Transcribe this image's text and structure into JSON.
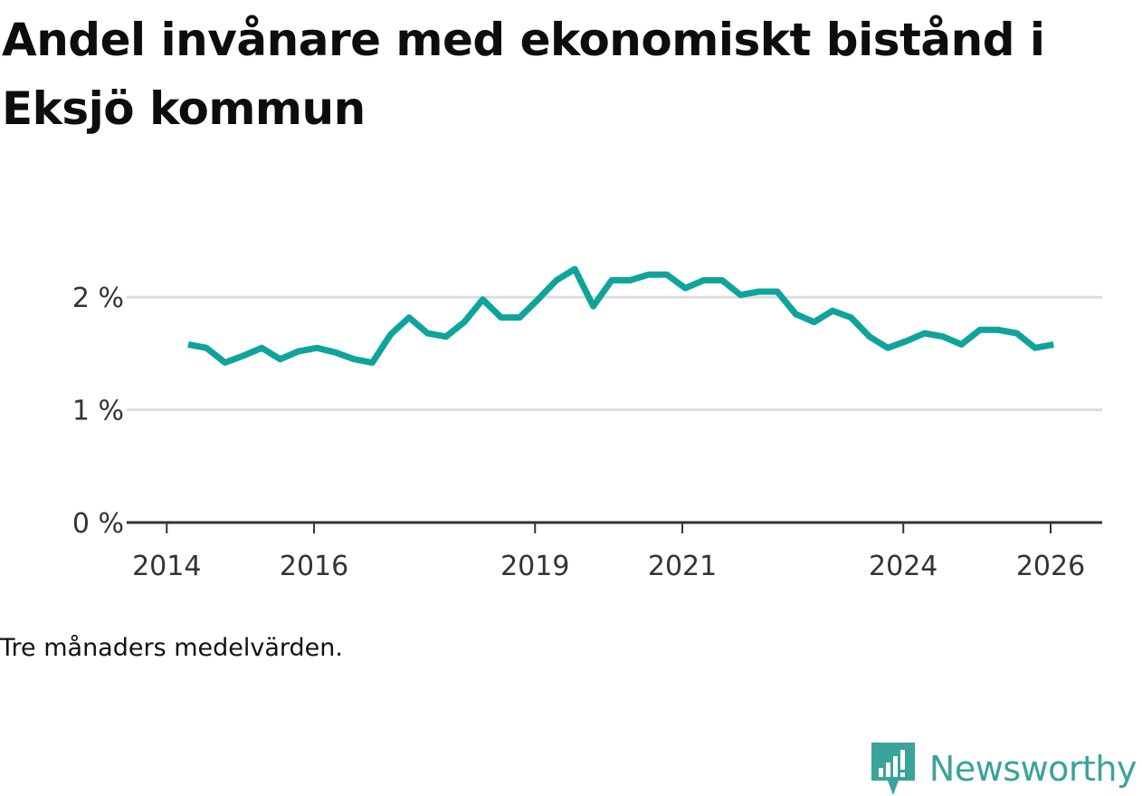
{
  "title": "Andel invånare med ekonomiskt bistånd i Eksjö kommun",
  "footnote": "Tre månaders medelvärden.",
  "brand": {
    "name": "Newsworthy",
    "icon": "newsworthy-logo-icon",
    "color": "#3aa39a"
  },
  "colors": {
    "line": "#0fa49b",
    "grid": "#dddddd",
    "axis": "#333333"
  },
  "chart_data": {
    "type": "line",
    "title": "Andel invånare med ekonomiskt bistånd i Eksjö kommun",
    "xlabel": "",
    "ylabel": "",
    "xlim": [
      2013.8,
      2026.7
    ],
    "ylim": [
      0,
      2.5
    ],
    "grid": true,
    "x_ticks": [
      {
        "value": 2014,
        "label": "2014"
      },
      {
        "value": 2016,
        "label": "2016"
      },
      {
        "value": 2019,
        "label": "2019"
      },
      {
        "value": 2021,
        "label": "2021"
      },
      {
        "value": 2024,
        "label": "2024"
      },
      {
        "value": 2026,
        "label": "2026"
      }
    ],
    "y_ticks": [
      {
        "value": 0,
        "label": "0 %"
      },
      {
        "value": 1,
        "label": "1 %"
      },
      {
        "value": 2,
        "label": "2 %"
      }
    ],
    "series": [
      {
        "name": "Andel invånare med ekonomiskt bistånd",
        "x": [
          2014.29,
          2014.54,
          2014.79,
          2015.04,
          2015.29,
          2015.54,
          2015.79,
          2016.04,
          2016.29,
          2016.54,
          2016.79,
          2017.04,
          2017.29,
          2017.54,
          2017.79,
          2018.04,
          2018.29,
          2018.54,
          2018.79,
          2019.04,
          2019.29,
          2019.54,
          2019.79,
          2020.04,
          2020.29,
          2020.54,
          2020.79,
          2021.04,
          2021.29,
          2021.54,
          2021.79,
          2022.04,
          2022.29,
          2022.54,
          2022.79,
          2023.04,
          2023.29,
          2023.54,
          2023.79,
          2024.04,
          2024.29,
          2024.54,
          2024.79,
          2025.04,
          2025.29,
          2025.54,
          2025.79,
          2026.04
        ],
        "values": [
          1.58,
          1.55,
          1.42,
          1.48,
          1.55,
          1.45,
          1.52,
          1.55,
          1.51,
          1.45,
          1.42,
          1.67,
          1.82,
          1.68,
          1.65,
          1.78,
          1.98,
          1.82,
          1.82,
          1.98,
          2.15,
          2.25,
          1.92,
          2.15,
          2.15,
          2.2,
          2.2,
          2.08,
          2.15,
          2.15,
          2.02,
          2.05,
          2.05,
          1.85,
          1.78,
          1.88,
          1.82,
          1.65,
          1.55,
          1.61,
          1.68,
          1.65,
          1.58,
          1.71,
          1.71,
          1.68,
          1.55,
          1.58
        ]
      }
    ]
  }
}
